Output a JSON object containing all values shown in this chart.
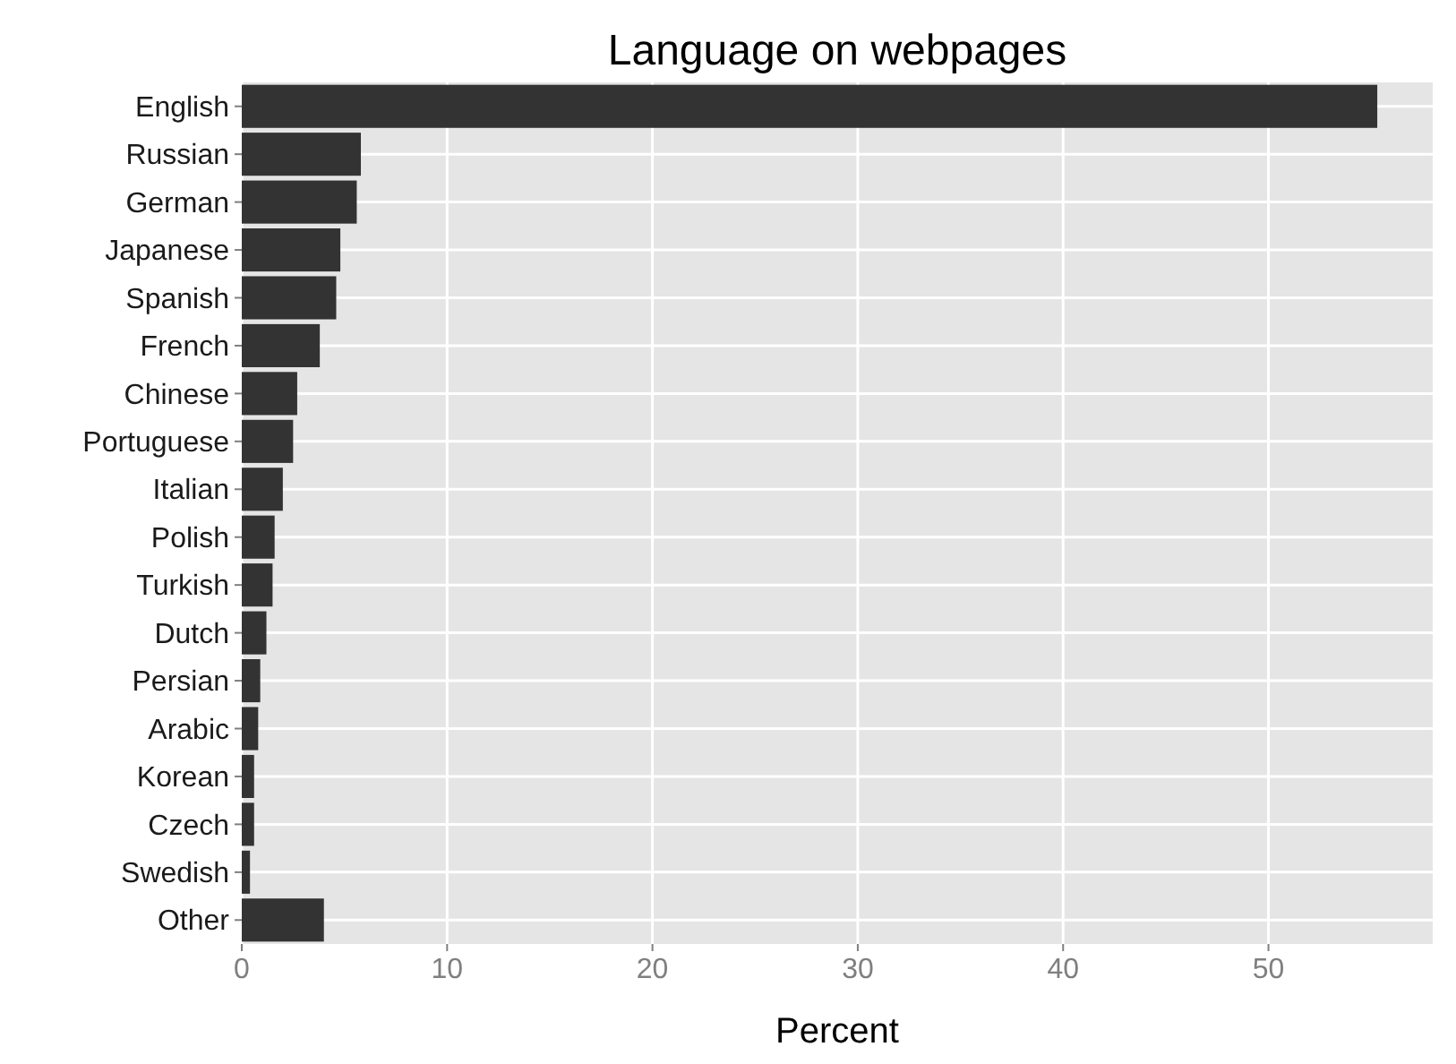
{
  "chart_data": {
    "type": "bar",
    "orientation": "horizontal",
    "title": "Language on webpages",
    "xlabel": "Percent",
    "categories": [
      "English",
      "Russian",
      "German",
      "Japanese",
      "Spanish",
      "French",
      "Chinese",
      "Portuguese",
      "Italian",
      "Polish",
      "Turkish",
      "Dutch",
      "Persian",
      "Arabic",
      "Korean",
      "Czech",
      "Swedish",
      "Other"
    ],
    "values": [
      55.3,
      5.8,
      5.6,
      4.8,
      4.6,
      3.8,
      2.7,
      2.5,
      2,
      1.6,
      1.5,
      1.2,
      0.9,
      0.8,
      0.6,
      0.6,
      0.4,
      4
    ],
    "color": "#333333",
    "xlim": [
      0,
      58
    ],
    "xticks": [
      0,
      10,
      20,
      30,
      40,
      50
    ],
    "grid": true
  }
}
